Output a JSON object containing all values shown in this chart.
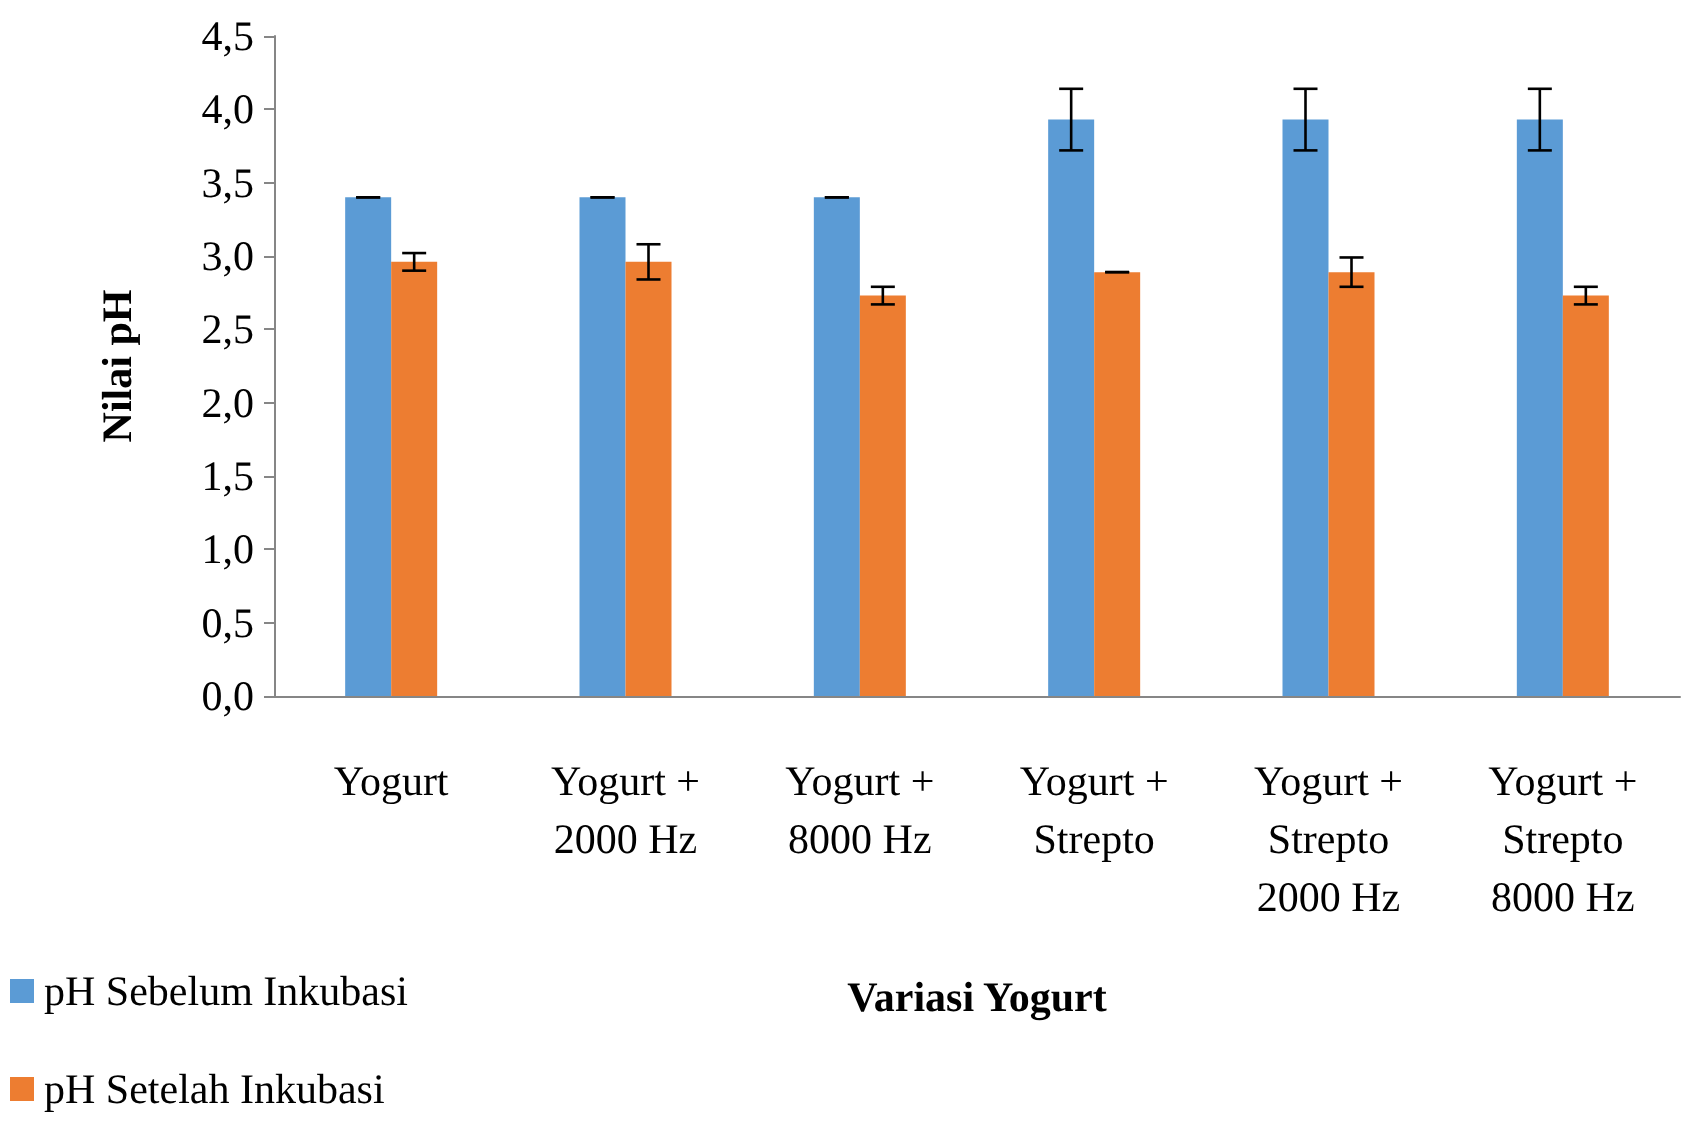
{
  "chart_data": {
    "type": "bar",
    "xlabel": "Variasi Yogurt",
    "ylabel": "Nilai pH",
    "categories": [
      "Yogurt",
      "Yogurt +\n2000 Hz",
      "Yogurt +\n8000 Hz",
      "Yogurt +\nStrepto",
      "Yogurt +\nStrepto\n2000 Hz",
      "Yogurt +\nStrepto\n8000 Hz"
    ],
    "series": [
      {
        "name": "pH Sebelum Inkubasi",
        "color": "#5b9bd5",
        "values": [
          3.4,
          3.4,
          3.4,
          3.93,
          3.93,
          3.93
        ],
        "errors": [
          0,
          0,
          0,
          0.21,
          0.21,
          0.21
        ]
      },
      {
        "name": "pH Setelah Inkubasi",
        "color": "#ed7d31",
        "values": [
          2.96,
          2.96,
          2.73,
          2.89,
          2.89,
          2.73
        ],
        "errors": [
          0.06,
          0.12,
          0.06,
          0,
          0.1,
          0.06
        ]
      }
    ],
    "ylim": [
      0,
      4.5
    ],
    "yticks": [
      {
        "value": 0,
        "label": "0,0"
      },
      {
        "value": 0.5,
        "label": "0,5"
      },
      {
        "value": 1,
        "label": "1,0"
      },
      {
        "value": 1.5,
        "label": "1,5"
      },
      {
        "value": 2,
        "label": "2,0"
      },
      {
        "value": 2.5,
        "label": "2,5"
      },
      {
        "value": 3,
        "label": "3,0"
      },
      {
        "value": 3.5,
        "label": "3,5"
      },
      {
        "value": 4,
        "label": "4,0"
      },
      {
        "value": 4.5,
        "label": "4,5"
      }
    ],
    "grid": false,
    "legend": "bottom left"
  }
}
